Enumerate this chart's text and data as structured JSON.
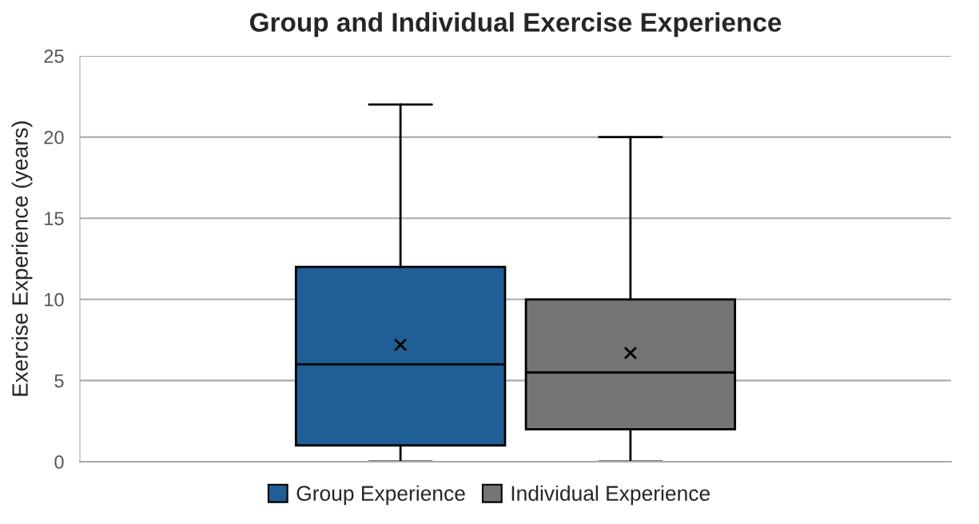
{
  "chart_data": {
    "type": "box",
    "title": "Group and Individual Exercise Experience",
    "ylabel": "Exercise Experience (years)",
    "categories": [
      null
    ],
    "series": [
      {
        "name": "Group Experience",
        "color": "#1f5f96",
        "boxes": [
          {
            "low": 0,
            "q1": 1,
            "median": 6,
            "q3": 12,
            "high": 22,
            "mean": 7.2
          }
        ]
      },
      {
        "name": "Individual Experience",
        "color": "#757575",
        "boxes": [
          {
            "low": 0,
            "q1": 2,
            "median": 5.5,
            "q3": 10,
            "high": 20,
            "mean": 6.7
          }
        ]
      }
    ],
    "ylim": [
      0,
      25
    ],
    "yticks": [
      0,
      5,
      10,
      15,
      20,
      25
    ],
    "grid": "y",
    "legend": "bottom",
    "marker": "cross"
  }
}
